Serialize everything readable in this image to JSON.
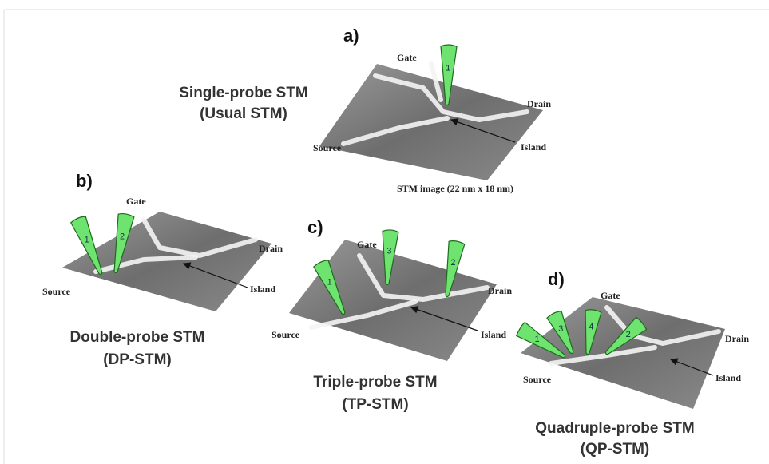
{
  "panels": [
    {
      "letter": "a)",
      "title": [
        "Single-probe STM",
        "(Usual STM)"
      ],
      "labels": {
        "gate": "Gate",
        "drain": "Drain",
        "source": "Source",
        "island": "Island"
      },
      "probes": [
        "1"
      ],
      "caption": "STM image  (22 nm x 18 nm)"
    },
    {
      "letter": "b)",
      "title": [
        "Double-probe STM",
        "(DP-STM)"
      ],
      "labels": {
        "gate": "Gate",
        "drain": "Drain",
        "source": "Source",
        "island": "Island"
      },
      "probes": [
        "1",
        "2"
      ]
    },
    {
      "letter": "c)",
      "title": [
        "Triple-probe STM",
        "(TP-STM)"
      ],
      "labels": {
        "gate": "Gate",
        "drain": "Drain",
        "source": "Source",
        "island": "Island"
      },
      "probes": [
        "3",
        "2",
        "1"
      ]
    },
    {
      "letter": "d)",
      "title": [
        "Quadruple-probe STM",
        "(QP-STM)"
      ],
      "labels": {
        "gate": "Gate",
        "drain": "Drain",
        "source": "Source",
        "island": "Island"
      },
      "probes": [
        "1",
        "3",
        "4",
        "2"
      ]
    }
  ]
}
